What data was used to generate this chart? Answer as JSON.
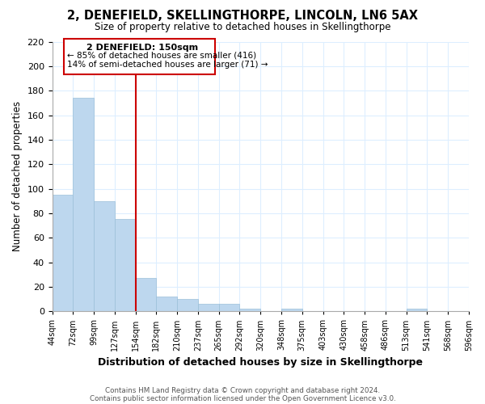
{
  "title": "2, DENEFIELD, SKELLINGTHORPE, LINCOLN, LN6 5AX",
  "subtitle": "Size of property relative to detached houses in Skellingthorpe",
  "bar_values": [
    95,
    174,
    90,
    75,
    27,
    12,
    10,
    6,
    6,
    2,
    0,
    2,
    0,
    0,
    0,
    0,
    0,
    2
  ],
  "x_labels": [
    "44sqm",
    "72sqm",
    "99sqm",
    "127sqm",
    "154sqm",
    "182sqm",
    "210sqm",
    "237sqm",
    "265sqm",
    "292sqm",
    "320sqm",
    "348sqm",
    "375sqm",
    "403sqm",
    "430sqm",
    "458sqm",
    "486sqm",
    "513sqm",
    "541sqm",
    "568sqm",
    "596sqm"
  ],
  "bar_color": "#BDD7EE",
  "bar_edge_color": "#9BBFD8",
  "vline_x_index": 4,
  "vline_color": "#cc0000",
  "ylabel": "Number of detached properties",
  "xlabel": "Distribution of detached houses by size in Skellingthorpe",
  "ylim": [
    0,
    220
  ],
  "yticks": [
    0,
    20,
    40,
    60,
    80,
    100,
    120,
    140,
    160,
    180,
    200,
    220
  ],
  "annotation_title": "2 DENEFIELD: 150sqm",
  "annotation_line1": "← 85% of detached houses are smaller (416)",
  "annotation_line2": "14% of semi-detached houses are larger (71) →",
  "footer1": "Contains HM Land Registry data © Crown copyright and database right 2024.",
  "footer2": "Contains public sector information licensed under the Open Government Licence v3.0.",
  "background_color": "#ffffff",
  "grid_color": "#ddeeff"
}
